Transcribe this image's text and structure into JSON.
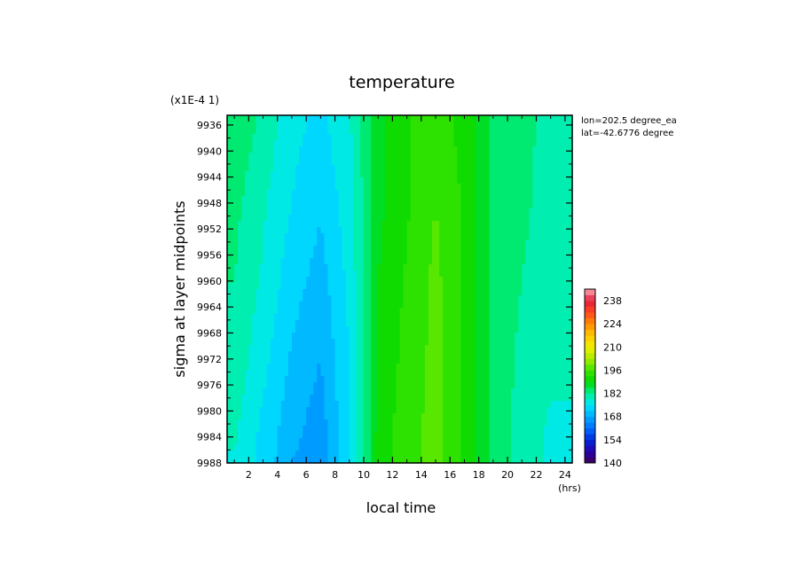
{
  "chart_data": {
    "type": "heatmap",
    "title": "temperature",
    "scale_note": "(x1E-4 1)",
    "xlabel": "local time",
    "xunit": "(hrs)",
    "ylabel": "sigma at layer midpoints",
    "xlim": [
      0.5,
      24.5
    ],
    "ylim": [
      9934.5,
      9988
    ],
    "y_inverted": true,
    "x_ticks": [
      2,
      4,
      6,
      8,
      10,
      12,
      14,
      16,
      18,
      20,
      22,
      24
    ],
    "y_ticks": [
      9936,
      9940,
      9944,
      9948,
      9952,
      9956,
      9960,
      9964,
      9968,
      9972,
      9976,
      9980,
      9984,
      9988
    ],
    "annotations": [
      "lon=202.5 degree_ea",
      "lat=-42.6776 degree"
    ],
    "colorbar": {
      "min": 140,
      "max": 245,
      "step": 3.5,
      "tick_labels": [
        140,
        154,
        168,
        182,
        196,
        210,
        224,
        238
      ]
    },
    "x": [
      1,
      3,
      5,
      7,
      9,
      11,
      13,
      15,
      17,
      19,
      21,
      23
    ],
    "y": [
      9936,
      9948,
      9960,
      9972,
      9984,
      9988
    ],
    "z": [
      [
        185,
        181,
        176,
        174,
        178,
        188,
        192,
        195,
        191,
        185,
        183,
        181
      ],
      [
        183,
        179,
        175,
        172,
        177,
        188,
        192,
        196,
        192,
        185,
        183,
        180
      ],
      [
        182,
        178,
        173,
        170,
        176,
        189,
        193,
        197,
        192,
        185,
        182,
        179
      ],
      [
        181,
        176,
        171,
        168,
        175,
        189,
        194,
        197,
        192,
        185,
        181,
        179
      ],
      [
        179,
        174,
        169,
        166,
        175,
        190,
        195,
        197,
        192,
        185,
        180,
        178
      ],
      [
        178,
        174,
        168,
        165,
        175,
        190,
        195,
        197,
        192,
        185,
        180,
        178
      ]
    ],
    "grid": false,
    "legend_position": "right"
  }
}
